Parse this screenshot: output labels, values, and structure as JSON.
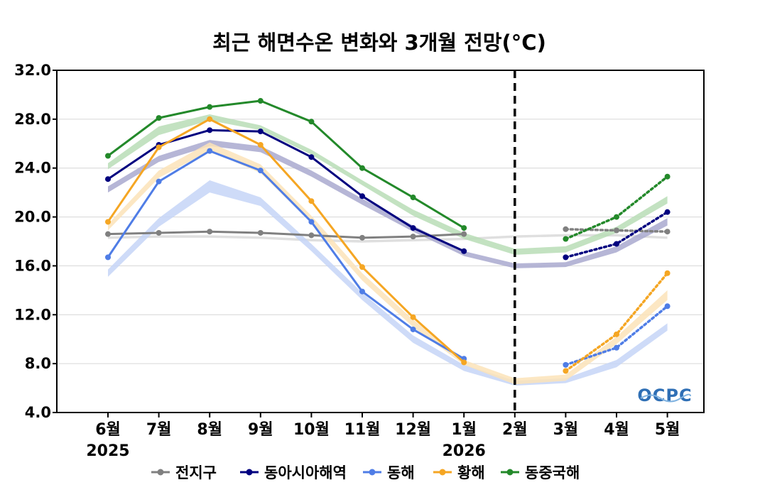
{
  "chart_data": {
    "type": "line",
    "title": "최근 해면수온 변화와 3개월 전망(°C)",
    "categories": [
      "6월",
      "7월",
      "8월",
      "9월",
      "10월",
      "11월",
      "12월",
      "1월",
      "2월",
      "3월",
      "4월",
      "5월"
    ],
    "year_labels": {
      "6월": "2025",
      "1월": "2026"
    },
    "ylim": [
      4.0,
      32.0
    ],
    "yticks": [
      "32.0",
      "28.0",
      "24.0",
      "20.0",
      "16.0",
      "12.0",
      "8.0",
      "4.0"
    ],
    "ytick_values": [
      32,
      28,
      24,
      20,
      16,
      12,
      8,
      4
    ],
    "forecast_divider_after": "1월",
    "series": [
      {
        "name": "전지구",
        "color": "#808080",
        "band_color": "#d9d9d9",
        "observed": [
          18.6,
          18.7,
          18.8,
          18.7,
          18.5,
          18.3,
          18.4,
          18.6,
          null,
          null,
          null,
          null
        ],
        "forecast": [
          null,
          null,
          null,
          null,
          null,
          null,
          null,
          null,
          null,
          19.0,
          18.9,
          18.8
        ],
        "climatology_band": [
          [
            18.2,
            18.4
          ],
          [
            18.3,
            18.5
          ],
          [
            18.3,
            18.5
          ],
          [
            18.2,
            18.4
          ],
          [
            18.0,
            18.2
          ],
          [
            17.9,
            18.1
          ],
          [
            18.0,
            18.2
          ],
          [
            18.1,
            18.3
          ],
          [
            18.3,
            18.5
          ],
          [
            18.4,
            18.6
          ],
          [
            18.4,
            18.6
          ],
          [
            18.2,
            18.4
          ]
        ]
      },
      {
        "name": "동아시아해역",
        "color": "#00007f",
        "band_color": "#a9a9cf",
        "observed": [
          23.1,
          25.9,
          27.1,
          27.0,
          24.9,
          21.7,
          19.1,
          17.2,
          null,
          null,
          null,
          null
        ],
        "forecast": [
          null,
          null,
          null,
          null,
          null,
          null,
          null,
          null,
          null,
          16.7,
          17.8,
          20.4
        ],
        "climatology_band": [
          [
            22.0,
            22.5
          ],
          [
            24.5,
            25.0
          ],
          [
            25.8,
            26.3
          ],
          [
            25.3,
            25.8
          ],
          [
            23.3,
            23.8
          ],
          [
            21.0,
            21.5
          ],
          [
            18.8,
            19.3
          ],
          [
            16.8,
            17.2
          ],
          [
            15.8,
            16.2
          ],
          [
            15.9,
            16.3
          ],
          [
            17.1,
            17.6
          ],
          [
            19.3,
            19.9
          ]
        ]
      },
      {
        "name": "동해",
        "color": "#4f7de6",
        "band_color": "#c5d5f7",
        "observed": [
          16.7,
          22.9,
          25.4,
          23.8,
          19.6,
          13.9,
          10.8,
          8.4,
          null,
          null,
          null,
          null
        ],
        "forecast": [
          null,
          null,
          null,
          null,
          null,
          null,
          null,
          null,
          null,
          7.9,
          9.3,
          12.7
        ],
        "climatology_band": [
          [
            15.1,
            15.7
          ],
          [
            19.2,
            19.9
          ],
          [
            22.0,
            23.0
          ],
          [
            20.9,
            21.6
          ],
          [
            17.2,
            17.8
          ],
          [
            13.2,
            13.8
          ],
          [
            9.7,
            10.3
          ],
          [
            7.4,
            7.9
          ],
          [
            6.2,
            6.6
          ],
          [
            6.4,
            6.8
          ],
          [
            7.7,
            8.3
          ],
          [
            10.7,
            11.3
          ]
        ]
      },
      {
        "name": "황해",
        "color": "#f5a623",
        "band_color": "#fbe3b8",
        "observed": [
          19.6,
          25.7,
          28.0,
          25.9,
          21.3,
          15.9,
          11.8,
          8.1,
          null,
          null,
          null,
          null
        ],
        "forecast": [
          null,
          null,
          null,
          null,
          null,
          null,
          null,
          null,
          null,
          7.4,
          10.4,
          15.4
        ],
        "climatology_band": [
          [
            18.9,
            19.4
          ],
          [
            23.2,
            23.8
          ],
          [
            25.4,
            26.1
          ],
          [
            23.6,
            24.3
          ],
          [
            19.5,
            20.1
          ],
          [
            14.8,
            15.4
          ],
          [
            11.0,
            11.6
          ],
          [
            7.9,
            8.3
          ],
          [
            6.3,
            6.8
          ],
          [
            6.6,
            7.1
          ],
          [
            9.6,
            10.2
          ],
          [
            13.2,
            14.0
          ]
        ]
      },
      {
        "name": "동중국해",
        "color": "#23892a",
        "band_color": "#b8ddb6",
        "observed": [
          25.0,
          28.1,
          29.0,
          29.5,
          27.8,
          24.0,
          21.6,
          19.1,
          null,
          null,
          null,
          null
        ],
        "forecast": [
          null,
          null,
          null,
          null,
          null,
          null,
          null,
          null,
          null,
          18.2,
          20.0,
          23.3
        ],
        "climatology_band": [
          [
            23.9,
            24.4
          ],
          [
            26.7,
            27.4
          ],
          [
            27.9,
            28.4
          ],
          [
            27.1,
            27.5
          ],
          [
            25.1,
            25.5
          ],
          [
            22.6,
            23.0
          ],
          [
            20.1,
            20.6
          ],
          [
            18.2,
            18.7
          ],
          [
            16.9,
            17.4
          ],
          [
            17.1,
            17.6
          ],
          [
            18.7,
            19.2
          ],
          [
            21.1,
            21.7
          ]
        ]
      }
    ],
    "legend_position": "bottom-center"
  },
  "logo_text": "OCPC"
}
